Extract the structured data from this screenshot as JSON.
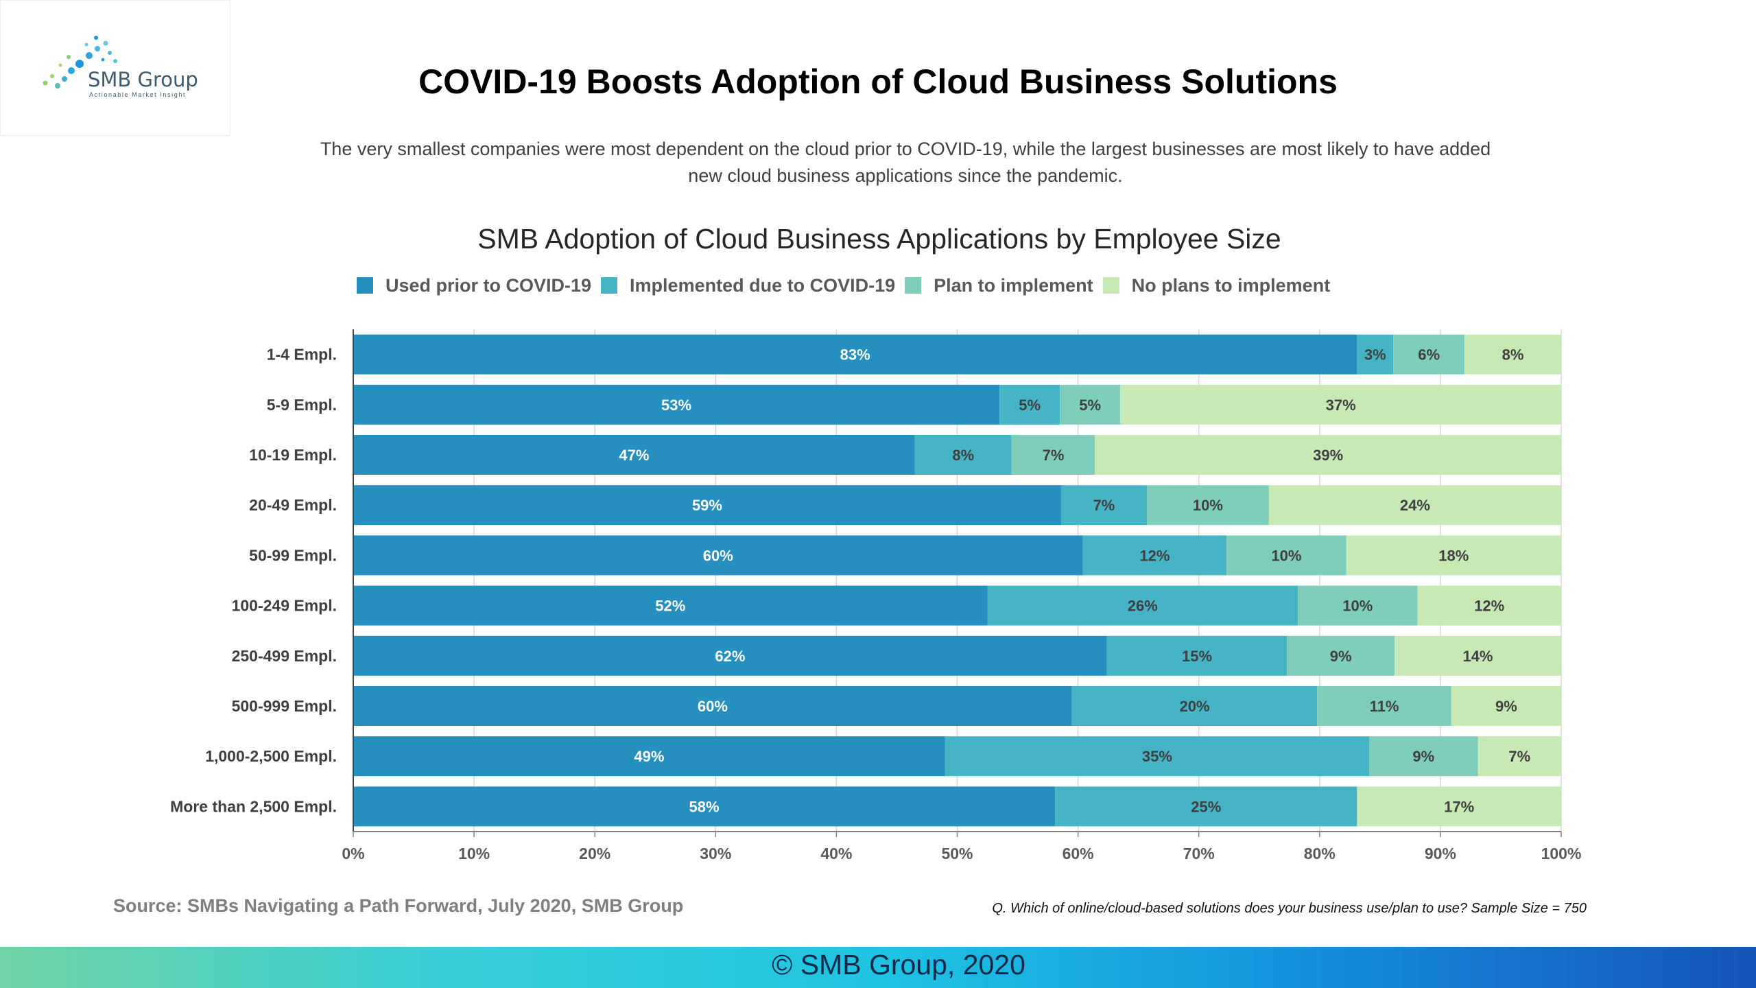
{
  "logo": {
    "name": "SMB Group",
    "tagline": "Actionable Market Insight"
  },
  "title": "COVID-19 Boosts Adoption of Cloud Business Solutions",
  "subtitle": "The very smallest companies were most dependent on the cloud prior to COVID-19, while the largest businesses are most likely to have added new cloud business applications since the pandemic.",
  "source": "Source: SMBs Navigating a Path Forward, July 2020, SMB Group",
  "note": "Q. Which of online/cloud-based solutions does your business use/plan to use? Sample Size = 750",
  "footer": "© SMB Group, 2020",
  "chart_data": {
    "type": "bar",
    "orientation": "horizontal",
    "stacked": true,
    "title": "SMB Adoption of Cloud Business Applications by Employee Size",
    "xlim": [
      0,
      100
    ],
    "x_ticks": [
      "0%",
      "10%",
      "20%",
      "30%",
      "40%",
      "50%",
      "60%",
      "70%",
      "80%",
      "90%",
      "100%"
    ],
    "grid": true,
    "legend_position": "top",
    "categories": [
      "1-4 Empl.",
      "5-9 Empl.",
      "10-19 Empl.",
      "20-49 Empl.",
      "50-99 Empl.",
      "100-249 Empl.",
      "250-499 Empl.",
      "500-999 Empl.",
      "1,000-2,500 Empl.",
      "More than 2,500 Empl."
    ],
    "series": [
      {
        "name": "Used prior to COVID-19",
        "color": "#2590c0",
        "label_color": "#ffffff",
        "values": [
          83.1,
          53.5,
          46.5,
          58.6,
          60.4,
          52.5,
          62.4,
          59.5,
          49.0,
          58.1
        ],
        "labels": [
          "83%",
          "53%",
          "47%",
          "59%",
          "60%",
          "52%",
          "62%",
          "60%",
          "49%",
          "58%"
        ]
      },
      {
        "name": "Implemented due to COVID-19",
        "color": "#45b5c5",
        "label_color": "#404040",
        "values": [
          3.0,
          5.0,
          8.0,
          7.1,
          11.9,
          25.7,
          14.9,
          20.3,
          35.1,
          25.0
        ],
        "labels": [
          "3%",
          "5%",
          "8%",
          "7%",
          "12%",
          "26%",
          "15%",
          "20%",
          "35%",
          "25%"
        ]
      },
      {
        "name": "Plan to implement",
        "color": "#7fcdbb",
        "label_color": "#404040",
        "values": [
          5.9,
          5.0,
          6.9,
          10.1,
          9.9,
          9.9,
          8.9,
          11.1,
          9.0,
          0
        ],
        "labels": [
          "6%",
          "5%",
          "7%",
          "10%",
          "10%",
          "10%",
          "9%",
          "11%",
          "9%",
          ""
        ]
      },
      {
        "name": "No plans to implement",
        "color": "#c7e9b4",
        "label_color": "#404040",
        "values": [
          8.0,
          36.5,
          38.6,
          24.2,
          17.8,
          11.9,
          13.8,
          9.1,
          6.9,
          16.9
        ],
        "labels": [
          "8%",
          "37%",
          "39%",
          "24%",
          "18%",
          "12%",
          "14%",
          "9%",
          "7%",
          "17%"
        ]
      }
    ]
  }
}
